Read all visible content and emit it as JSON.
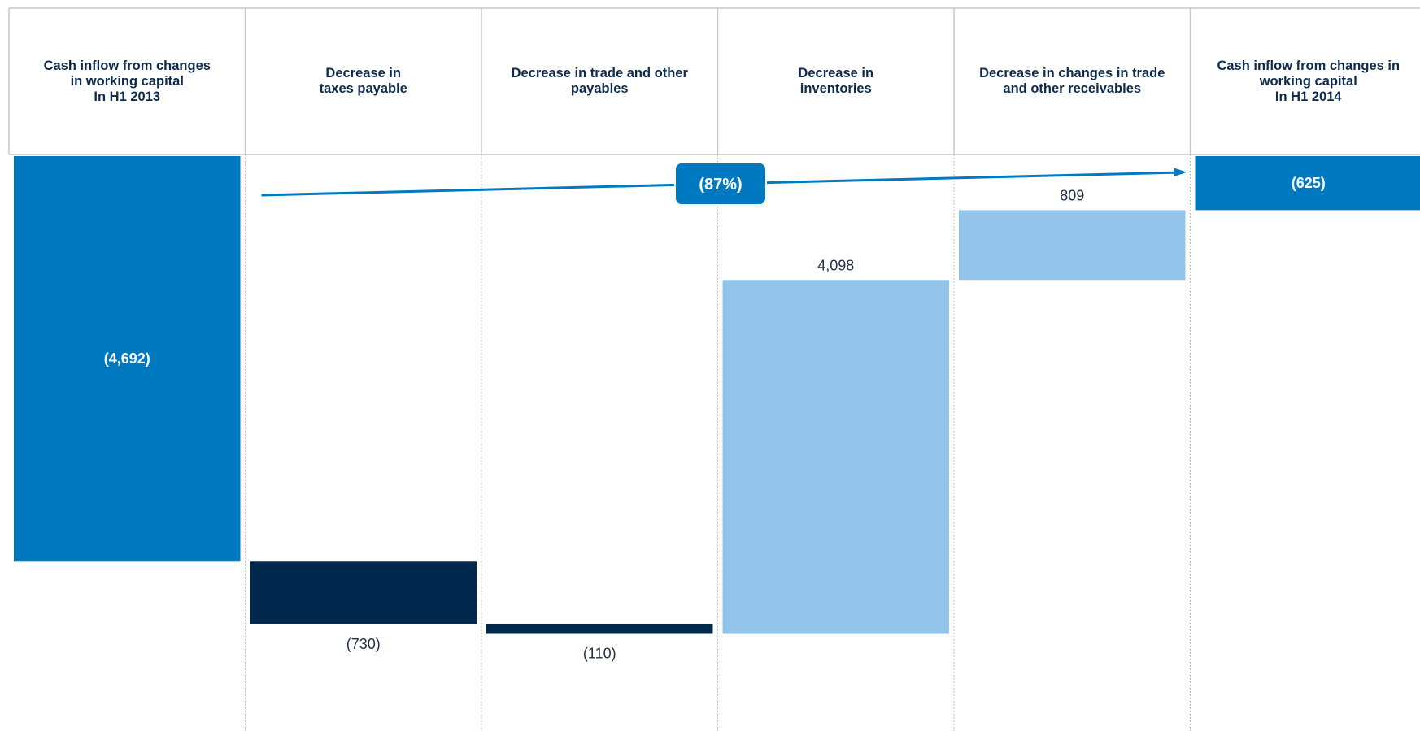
{
  "chart_data": {
    "type": "bar",
    "subtype": "waterfall",
    "categories": [
      "Cash inflow from changes\nin working capital\nIn H1 2013",
      "Decrease in\ntaxes payable",
      "Decrease in trade and other\npayables",
      "Decrease in\ninventories",
      "Decrease in changes in trade\nand other receivables",
      "Cash inflow from changes in\nworking capital\nIn H1 2014"
    ],
    "values": [
      -4692,
      -730,
      -110,
      4098,
      809,
      -625
    ],
    "value_labels": [
      "(4,692)",
      "(730)",
      "(110)",
      "4,098",
      "809",
      "(625)"
    ],
    "bar_kinds": [
      "total",
      "decrease",
      "decrease",
      "increase",
      "increase",
      "total"
    ],
    "ylim": [
      -5857,
      0
    ],
    "annotation": {
      "text": "(87%)"
    },
    "grid": false,
    "legend": "none",
    "title": "",
    "xlabel": "",
    "ylabel": ""
  },
  "colors": {
    "total": "#0079c1",
    "decrease": "#00284d",
    "increase": "#93c5ea",
    "header_text": "#0d2b4f",
    "value_text": "#1f2f44",
    "border": "#c8c8c8",
    "divider": "#a9a9a9"
  }
}
